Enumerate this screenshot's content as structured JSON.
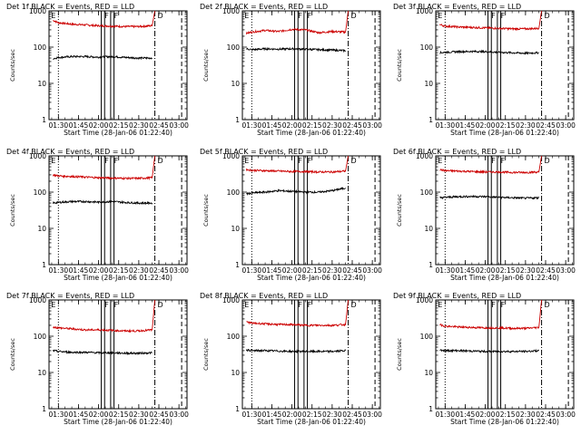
{
  "figure": {
    "background": "#ffffff"
  },
  "chart_data": [
    {
      "type": "line",
      "title": "Det 1f BLACK = Events, RED = LLD",
      "xlabel": "Start Time (28-Jan-06 01:22:40)",
      "ylabel": "Counts/sec",
      "yscale": "log",
      "ylim": [
        1,
        1000
      ],
      "x_ticks": [
        "01:30",
        "01:45",
        "02:00",
        "02:15",
        "02:30",
        "02:45",
        "03:00"
      ],
      "y_ticks": [
        "1",
        "10",
        "100",
        "1000"
      ],
      "flag_labels": [
        "E",
        "F",
        "F",
        "D"
      ],
      "series": [
        {
          "color": "#cc0000",
          "x": [
            "01:26",
            "01:30",
            "01:40",
            "01:50",
            "02:00",
            "02:10",
            "02:20",
            "02:30",
            "02:40",
            "02:42"
          ],
          "y": [
            550,
            470,
            430,
            410,
            390,
            380,
            370,
            370,
            390,
            1000
          ]
        },
        {
          "color": "#000000",
          "x": [
            "01:26",
            "01:30",
            "01:40",
            "01:50",
            "02:00",
            "02:10",
            "02:20",
            "02:30",
            "02:40"
          ],
          "y": [
            48,
            52,
            55,
            55,
            53,
            55,
            52,
            50,
            50
          ]
        }
      ]
    },
    {
      "type": "line",
      "title": "Det 2f BLACK = Events, RED = LLD",
      "xlabel": "Start Time (28-Jan-06 01:22:40)",
      "ylabel": "Counts/sec",
      "yscale": "log",
      "ylim": [
        1,
        1000
      ],
      "x_ticks": [
        "01:30",
        "01:45",
        "02:00",
        "02:15",
        "02:30",
        "02:45",
        "03:00"
      ],
      "y_ticks": [
        "1",
        "10",
        "100",
        "1000"
      ],
      "flag_labels": [
        "E",
        "F",
        "F",
        "D"
      ],
      "series": [
        {
          "color": "#cc0000",
          "x": [
            "01:26",
            "01:30",
            "01:40",
            "01:50",
            "02:00",
            "02:10",
            "02:20",
            "02:30",
            "02:40",
            "02:42"
          ],
          "y": [
            240,
            260,
            290,
            270,
            310,
            300,
            250,
            270,
            260,
            1000
          ]
        },
        {
          "color": "#000000",
          "x": [
            "01:26",
            "01:30",
            "01:40",
            "01:50",
            "02:00",
            "02:10",
            "02:20",
            "02:30",
            "02:40"
          ],
          "y": [
            90,
            85,
            90,
            88,
            90,
            88,
            85,
            83,
            80
          ]
        }
      ]
    },
    {
      "type": "line",
      "title": "Det 3f BLACK = Events, RED = LLD",
      "xlabel": "Start Time (28-Jan-06 01:22:40)",
      "ylabel": "Counts/sec",
      "yscale": "log",
      "ylim": [
        1,
        1000
      ],
      "x_ticks": [
        "01:30",
        "01:45",
        "02:00",
        "02:15",
        "02:30",
        "02:45",
        "03:00"
      ],
      "y_ticks": [
        "1",
        "10",
        "100",
        "1000"
      ],
      "flag_labels": [
        "E",
        "F",
        "F",
        "D"
      ],
      "series": [
        {
          "color": "#cc0000",
          "x": [
            "01:26",
            "01:30",
            "01:40",
            "01:50",
            "02:00",
            "02:10",
            "02:20",
            "02:30",
            "02:40",
            "02:42"
          ],
          "y": [
            420,
            380,
            360,
            350,
            340,
            330,
            320,
            320,
            330,
            1000
          ]
        },
        {
          "color": "#000000",
          "x": [
            "01:26",
            "01:30",
            "01:40",
            "01:50",
            "02:00",
            "02:10",
            "02:20",
            "02:30",
            "02:40"
          ],
          "y": [
            70,
            72,
            75,
            76,
            75,
            72,
            70,
            68,
            70
          ]
        }
      ]
    },
    {
      "type": "line",
      "title": "Det 4f BLACK = Events, RED = LLD",
      "xlabel": "Start Time (28-Jan-06 01:22:40)",
      "ylabel": "Counts/sec",
      "yscale": "log",
      "ylim": [
        1,
        1000
      ],
      "x_ticks": [
        "01:30",
        "01:45",
        "02:00",
        "02:15",
        "02:30",
        "02:45",
        "03:00"
      ],
      "y_ticks": [
        "1",
        "10",
        "100",
        "1000"
      ],
      "flag_labels": [
        "E",
        "F",
        "F",
        "D"
      ],
      "series": [
        {
          "color": "#cc0000",
          "x": [
            "01:26",
            "01:30",
            "01:40",
            "01:50",
            "02:00",
            "02:10",
            "02:20",
            "02:30",
            "02:40",
            "02:42"
          ],
          "y": [
            300,
            280,
            270,
            260,
            250,
            245,
            240,
            240,
            250,
            1000
          ]
        },
        {
          "color": "#000000",
          "x": [
            "01:26",
            "01:30",
            "01:40",
            "01:50",
            "02:00",
            "02:10",
            "02:20",
            "02:30",
            "02:40"
          ],
          "y": [
            50,
            52,
            55,
            55,
            53,
            55,
            52,
            50,
            50
          ]
        }
      ]
    },
    {
      "type": "line",
      "title": "Det 5f BLACK = Events, RED = LLD",
      "xlabel": "Start Time (28-Jan-06 01:22:40)",
      "ylabel": "Counts/sec",
      "yscale": "log",
      "ylim": [
        1,
        1000
      ],
      "x_ticks": [
        "01:30",
        "01:45",
        "02:00",
        "02:15",
        "02:30",
        "02:45",
        "03:00"
      ],
      "y_ticks": [
        "1",
        "10",
        "100",
        "1000"
      ],
      "flag_labels": [
        "E",
        "F",
        "F",
        "D"
      ],
      "series": [
        {
          "color": "#cc0000",
          "x": [
            "01:26",
            "01:30",
            "01:40",
            "01:50",
            "02:00",
            "02:10",
            "02:20",
            "02:30",
            "02:40",
            "02:42"
          ],
          "y": [
            420,
            400,
            390,
            380,
            370,
            370,
            360,
            360,
            380,
            1000
          ]
        },
        {
          "color": "#000000",
          "x": [
            "01:26",
            "01:30",
            "01:40",
            "01:50",
            "02:00",
            "02:10",
            "02:20",
            "02:30",
            "02:40"
          ],
          "y": [
            90,
            95,
            100,
            110,
            105,
            100,
            100,
            110,
            130
          ]
        }
      ]
    },
    {
      "type": "line",
      "title": "Det 6f BLACK = Events, RED = LLD",
      "xlabel": "Start Time (28-Jan-06 01:22:40)",
      "ylabel": "Counts/sec",
      "yscale": "log",
      "ylim": [
        1,
        1000
      ],
      "x_ticks": [
        "01:30",
        "01:45",
        "02:00",
        "02:15",
        "02:30",
        "02:45",
        "03:00"
      ],
      "y_ticks": [
        "1",
        "10",
        "100",
        "1000"
      ],
      "flag_labels": [
        "E",
        "F",
        "F",
        "D"
      ],
      "series": [
        {
          "color": "#cc0000",
          "x": [
            "01:26",
            "01:30",
            "01:40",
            "01:50",
            "02:00",
            "02:10",
            "02:20",
            "02:30",
            "02:40",
            "02:42"
          ],
          "y": [
            420,
            390,
            380,
            370,
            360,
            360,
            350,
            350,
            360,
            1000
          ]
        },
        {
          "color": "#000000",
          "x": [
            "01:26",
            "01:30",
            "01:40",
            "01:50",
            "02:00",
            "02:10",
            "02:20",
            "02:30",
            "02:40"
          ],
          "y": [
            70,
            72,
            75,
            76,
            75,
            72,
            70,
            68,
            70
          ]
        }
      ]
    },
    {
      "type": "line",
      "title": "Det 7f BLACK = Events, RED = LLD",
      "xlabel": "Start Time (28-Jan-06 01:22:40)",
      "ylabel": "Counts/sec",
      "yscale": "log",
      "ylim": [
        1,
        1000
      ],
      "x_ticks": [
        "01:30",
        "01:45",
        "02:00",
        "02:15",
        "02:30",
        "02:45",
        "03:00"
      ],
      "y_ticks": [
        "1",
        "10",
        "100",
        "1000"
      ],
      "flag_labels": [
        "E",
        "F",
        "F",
        "D"
      ],
      "series": [
        {
          "color": "#cc0000",
          "x": [
            "01:26",
            "01:30",
            "01:40",
            "01:50",
            "02:00",
            "02:10",
            "02:20",
            "02:30",
            "02:40",
            "02:42"
          ],
          "y": [
            180,
            170,
            160,
            150,
            150,
            145,
            140,
            140,
            150,
            1000
          ]
        },
        {
          "color": "#000000",
          "x": [
            "01:26",
            "01:30",
            "01:40",
            "01:50",
            "02:00",
            "02:10",
            "02:20",
            "02:30",
            "02:40"
          ],
          "y": [
            40,
            38,
            36,
            36,
            35,
            35,
            34,
            34,
            35
          ]
        }
      ]
    },
    {
      "type": "line",
      "title": "Det 8f BLACK = Events, RED = LLD",
      "xlabel": "Start Time (28-Jan-06 01:22:40)",
      "ylabel": "Counts/sec",
      "yscale": "log",
      "ylim": [
        1,
        1000
      ],
      "x_ticks": [
        "01:30",
        "01:45",
        "02:00",
        "02:15",
        "02:30",
        "02:45",
        "03:00"
      ],
      "y_ticks": [
        "1",
        "10",
        "100",
        "1000"
      ],
      "flag_labels": [
        "E",
        "F",
        "F",
        "D"
      ],
      "series": [
        {
          "color": "#cc0000",
          "x": [
            "01:26",
            "01:30",
            "01:40",
            "01:50",
            "02:00",
            "02:10",
            "02:20",
            "02:30",
            "02:40",
            "02:42"
          ],
          "y": [
            250,
            230,
            220,
            210,
            210,
            200,
            200,
            200,
            210,
            1000
          ]
        },
        {
          "color": "#000000",
          "x": [
            "01:26",
            "01:30",
            "01:40",
            "01:50",
            "02:00",
            "02:10",
            "02:20",
            "02:30",
            "02:40"
          ],
          "y": [
            42,
            40,
            40,
            39,
            38,
            38,
            38,
            38,
            40
          ]
        }
      ]
    },
    {
      "type": "line",
      "title": "Det 9f BLACK = Events, RED = LLD",
      "xlabel": "Start Time (28-Jan-06 01:22:40)",
      "ylabel": "Counts/sec",
      "yscale": "log",
      "ylim": [
        1,
        1000
      ],
      "x_ticks": [
        "01:30",
        "01:45",
        "02:00",
        "02:15",
        "02:30",
        "02:45",
        "03:00"
      ],
      "y_ticks": [
        "1",
        "10",
        "100",
        "1000"
      ],
      "flag_labels": [
        "E",
        "F",
        "F",
        "D"
      ],
      "series": [
        {
          "color": "#cc0000",
          "x": [
            "01:26",
            "01:30",
            "01:40",
            "01:50",
            "02:00",
            "02:10",
            "02:20",
            "02:30",
            "02:40",
            "02:42"
          ],
          "y": [
            210,
            190,
            180,
            175,
            170,
            170,
            165,
            165,
            175,
            1000
          ]
        },
        {
          "color": "#000000",
          "x": [
            "01:26",
            "01:30",
            "01:40",
            "01:50",
            "02:00",
            "02:10",
            "02:20",
            "02:30",
            "02:40"
          ],
          "y": [
            42,
            40,
            40,
            39,
            38,
            38,
            38,
            38,
            40
          ]
        }
      ]
    }
  ]
}
